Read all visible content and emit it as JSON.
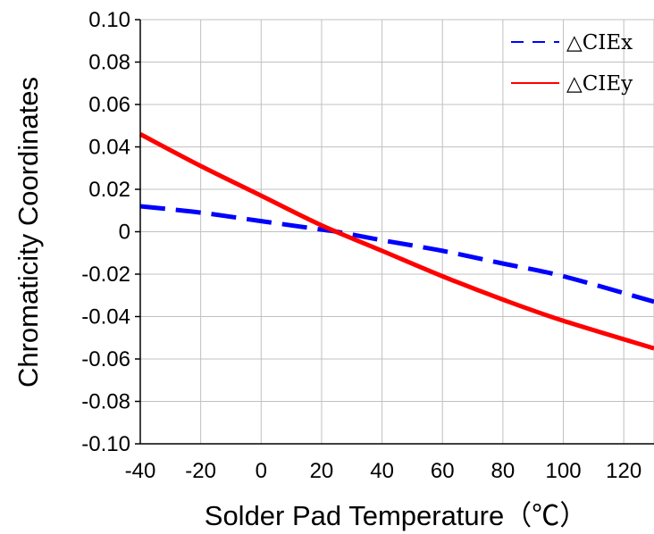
{
  "chart_data": {
    "type": "line",
    "title": "",
    "xlabel": "Solder Pad Temperature（℃）",
    "ylabel": "Chromaticity Coordinates",
    "xlim": [
      -40,
      130
    ],
    "ylim": [
      -0.1,
      0.1
    ],
    "x_ticks": [
      -40,
      -20,
      0,
      20,
      40,
      60,
      80,
      100,
      120
    ],
    "x_tick_labels": [
      "-40",
      "-20",
      "0",
      "20",
      "40",
      "60",
      "80",
      "100",
      "120"
    ],
    "x_grid": [
      -40,
      -20,
      0,
      20,
      40,
      60,
      80,
      100,
      120,
      130
    ],
    "y_ticks": [
      0.1,
      0.08,
      0.06,
      0.04,
      0.02,
      0,
      -0.02,
      -0.04,
      -0.06,
      -0.08,
      -0.1
    ],
    "y_tick_labels": [
      "0.10",
      "0.08",
      "0.06",
      "0.04",
      "0.02",
      "0",
      "-0.02",
      "-0.04",
      "-0.06",
      "-0.08",
      "-0.10"
    ],
    "grid": true,
    "legend": "top-right",
    "series": [
      {
        "name": "△CIEx",
        "color": "#0000ff",
        "style": "dashed",
        "x": [
          -40,
          -20,
          0,
          20,
          25,
          40,
          60,
          80,
          100,
          130
        ],
        "y": [
          0.012,
          0.009,
          0.005,
          0.001,
          0.0,
          -0.004,
          -0.009,
          -0.015,
          -0.021,
          -0.033
        ]
      },
      {
        "name": "△CIEy",
        "color": "#ff0000",
        "style": "solid",
        "x": [
          -40,
          -20,
          0,
          20,
          40,
          60,
          80,
          100,
          130
        ],
        "y": [
          0.046,
          0.031,
          0.017,
          0.003,
          -0.009,
          -0.021,
          -0.032,
          -0.042,
          -0.055
        ]
      }
    ]
  }
}
